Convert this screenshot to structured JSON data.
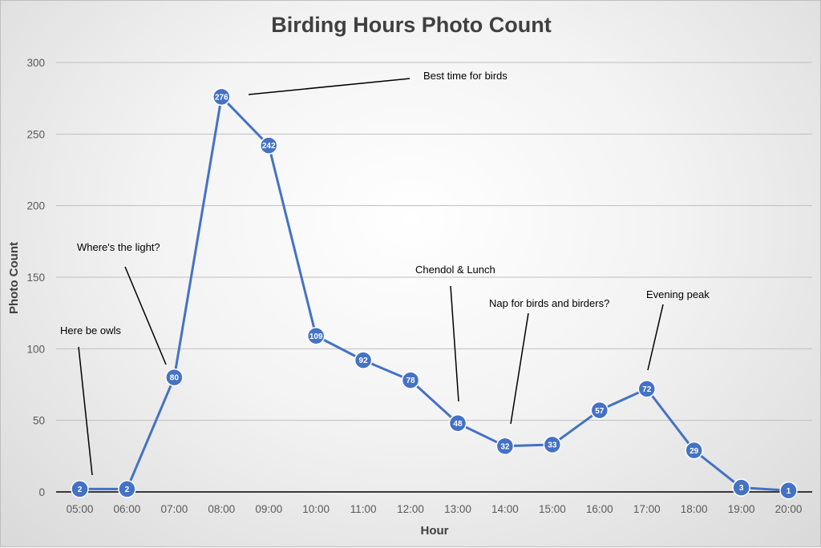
{
  "chart_data": {
    "type": "line",
    "title": "Birding Hours Photo Count",
    "xlabel": "Hour",
    "ylabel": "Photo Count",
    "categories": [
      "05:00",
      "06:00",
      "07:00",
      "08:00",
      "09:00",
      "10:00",
      "11:00",
      "12:00",
      "13:00",
      "14:00",
      "15:00",
      "16:00",
      "17:00",
      "18:00",
      "19:00",
      "20:00"
    ],
    "values": [
      2,
      2,
      80,
      276,
      242,
      109,
      92,
      78,
      48,
      32,
      33,
      57,
      72,
      29,
      3,
      1
    ],
    "ylim": [
      0,
      300
    ],
    "yticks": [
      "0",
      "50",
      "100",
      "150",
      "200",
      "250",
      "300"
    ],
    "grid": true,
    "data_labels": true,
    "colors": {
      "line": "#4472C4",
      "marker": "#4472C4",
      "gridline": "#bfbfbf",
      "axis": "#000000"
    },
    "annotations": [
      {
        "text": "Here be owls",
        "points_to": "05:00"
      },
      {
        "text": "Where's the light?",
        "points_to": "07:00"
      },
      {
        "text": "Best time for birds",
        "points_to": "08:00"
      },
      {
        "text": "Chendol & Lunch",
        "points_to": "13:00"
      },
      {
        "text": "Nap for birds and birders?",
        "points_to": "14:00"
      },
      {
        "text": "Evening peak",
        "points_to": "17:00"
      }
    ]
  }
}
